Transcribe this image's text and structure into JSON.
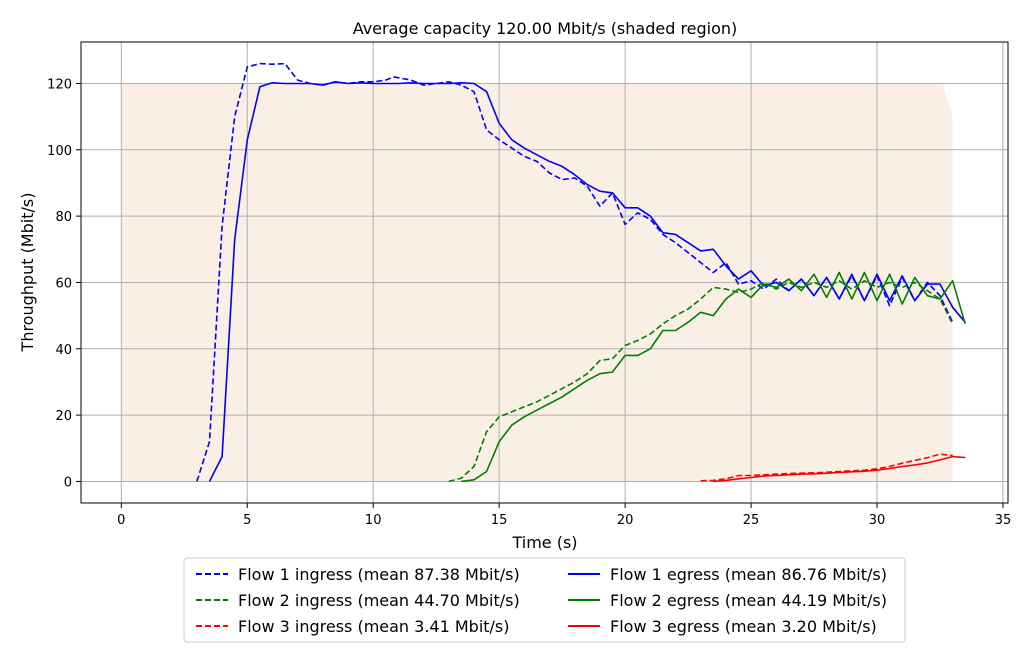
{
  "chart_data": {
    "type": "line",
    "title": "Average capacity 120.00 Mbit/s (shaded region)",
    "xlabel": "Time (s)",
    "ylabel": "Throughput (Mbit/s)",
    "xlim": [
      -1.6,
      35.2
    ],
    "ylim": [
      -6.5,
      132.5
    ],
    "xticks": [
      0,
      5,
      10,
      15,
      20,
      25,
      30,
      35
    ],
    "yticks": [
      0,
      20,
      40,
      60,
      80,
      100,
      120
    ],
    "grid": true,
    "legend_position": "below",
    "capacity": {
      "color": "#faefe5",
      "points": [
        [
          0,
          0
        ],
        [
          0,
          120
        ],
        [
          32.6,
          120
        ],
        [
          33,
          110
        ],
        [
          33,
          0
        ]
      ]
    },
    "series": [
      {
        "name": "Flow 1 ingress (mean 87.38 Mbit/s)",
        "color": "#0000ff",
        "dash": "dashed",
        "points": [
          [
            3,
            0
          ],
          [
            3.5,
            12
          ],
          [
            4,
            77
          ],
          [
            4.5,
            110
          ],
          [
            5,
            125
          ],
          [
            5.5,
            126
          ],
          [
            6,
            125.8
          ],
          [
            6.5,
            126
          ],
          [
            7,
            121
          ],
          [
            7.5,
            120
          ],
          [
            8,
            119.5
          ],
          [
            8.5,
            120.5
          ],
          [
            9,
            120
          ],
          [
            9.5,
            120.5
          ],
          [
            10,
            120.5
          ],
          [
            10.5,
            121
          ],
          [
            10.8,
            122
          ],
          [
            11.5,
            121
          ],
          [
            12,
            119.5
          ],
          [
            12.5,
            120
          ],
          [
            13,
            120.5
          ],
          [
            13.5,
            119.5
          ],
          [
            14,
            117.5
          ],
          [
            14.5,
            106
          ],
          [
            15,
            103
          ],
          [
            15.5,
            100.5
          ],
          [
            16,
            98
          ],
          [
            16.5,
            96.5
          ],
          [
            17,
            93
          ],
          [
            17.5,
            91
          ],
          [
            18,
            91.5
          ],
          [
            18.5,
            89
          ],
          [
            19,
            83
          ],
          [
            19.5,
            87
          ],
          [
            20,
            77.5
          ],
          [
            20.5,
            81
          ],
          [
            21,
            79
          ],
          [
            21.5,
            74.5
          ],
          [
            22,
            72
          ],
          [
            22.5,
            69
          ],
          [
            23,
            66
          ],
          [
            23.5,
            63
          ],
          [
            24,
            66
          ],
          [
            24.5,
            59.5
          ],
          [
            25,
            60.5
          ],
          [
            25.5,
            58
          ],
          [
            26,
            61
          ],
          [
            26.5,
            57.5
          ],
          [
            27,
            61
          ],
          [
            27.5,
            56
          ],
          [
            28,
            61.5
          ],
          [
            28.5,
            55
          ],
          [
            29,
            62
          ],
          [
            29.5,
            54.5
          ],
          [
            30,
            62
          ],
          [
            30.5,
            53
          ],
          [
            31,
            61.5
          ],
          [
            31.5,
            54.5
          ],
          [
            32,
            60
          ],
          [
            32.5,
            56
          ],
          [
            33,
            48
          ]
        ]
      },
      {
        "name": "Flow 1 egress (mean 86.76 Mbit/s)",
        "color": "#0000ff",
        "dash": "solid",
        "points": [
          [
            3.5,
            0
          ],
          [
            4,
            7.5
          ],
          [
            4.5,
            73
          ],
          [
            5,
            103
          ],
          [
            5.5,
            119
          ],
          [
            6,
            120.2
          ],
          [
            6.5,
            120
          ],
          [
            7,
            120
          ],
          [
            7.5,
            120
          ],
          [
            8,
            119.5
          ],
          [
            8.5,
            120.5
          ],
          [
            9,
            120
          ],
          [
            9.5,
            120.2
          ],
          [
            10,
            120
          ],
          [
            10.5,
            120
          ],
          [
            11,
            120
          ],
          [
            11.5,
            120.2
          ],
          [
            12,
            120
          ],
          [
            12.5,
            120
          ],
          [
            13,
            120
          ],
          [
            13.5,
            120.2
          ],
          [
            14,
            120
          ],
          [
            14.5,
            117.5
          ],
          [
            15,
            108
          ],
          [
            15.5,
            103
          ],
          [
            16,
            100.5
          ],
          [
            16.5,
            98.5
          ],
          [
            17,
            96.5
          ],
          [
            17.5,
            95
          ],
          [
            18,
            92.5
          ],
          [
            18.5,
            89.5
          ],
          [
            19,
            87.5
          ],
          [
            19.5,
            87
          ],
          [
            20,
            82.5
          ],
          [
            20.5,
            82.5
          ],
          [
            21,
            80
          ],
          [
            21.5,
            75
          ],
          [
            22,
            74.5
          ],
          [
            22.5,
            72
          ],
          [
            23,
            69.5
          ],
          [
            23.5,
            70
          ],
          [
            24,
            65
          ],
          [
            24.5,
            61
          ],
          [
            25,
            63.5
          ],
          [
            25.5,
            59
          ],
          [
            26,
            60
          ],
          [
            26.5,
            57.5
          ],
          [
            27,
            61
          ],
          [
            27.5,
            56
          ],
          [
            28,
            61.5
          ],
          [
            28.5,
            55
          ],
          [
            29,
            62.5
          ],
          [
            29.5,
            54.5
          ],
          [
            30,
            62.5
          ],
          [
            30.5,
            54.5
          ],
          [
            31,
            62
          ],
          [
            31.5,
            54.5
          ],
          [
            32,
            59.5
          ],
          [
            32.5,
            59.5
          ],
          [
            33,
            52.5
          ],
          [
            33.5,
            48
          ]
        ]
      },
      {
        "name": "Flow 2 ingress (mean 44.70 Mbit/s)",
        "color": "#008000",
        "dash": "dashed",
        "points": [
          [
            13,
            0
          ],
          [
            13.5,
            1
          ],
          [
            14,
            4.5
          ],
          [
            14.5,
            15
          ],
          [
            15,
            19.5
          ],
          [
            15.5,
            21
          ],
          [
            16,
            22.5
          ],
          [
            16.5,
            24
          ],
          [
            17,
            26
          ],
          [
            17.5,
            28
          ],
          [
            18,
            30
          ],
          [
            18.5,
            32.5
          ],
          [
            19,
            36.5
          ],
          [
            19.5,
            37
          ],
          [
            20,
            41
          ],
          [
            20.5,
            42.5
          ],
          [
            21,
            44.5
          ],
          [
            21.5,
            47.5
          ],
          [
            22,
            50
          ],
          [
            22.5,
            52
          ],
          [
            23,
            55
          ],
          [
            23.5,
            58.5
          ],
          [
            24,
            58
          ],
          [
            24.5,
            57
          ],
          [
            25,
            58
          ],
          [
            25.5,
            60
          ],
          [
            26,
            58
          ],
          [
            26.5,
            60
          ],
          [
            27,
            58.5
          ],
          [
            27.5,
            60
          ],
          [
            28,
            58.5
          ],
          [
            28.5,
            60.5
          ],
          [
            29,
            58
          ],
          [
            29.5,
            60.5
          ],
          [
            30,
            58.5
          ],
          [
            30.5,
            60
          ],
          [
            31,
            58.5
          ],
          [
            31.5,
            60
          ],
          [
            32,
            57.5
          ],
          [
            32.5,
            55
          ],
          [
            33,
            47.5
          ]
        ]
      },
      {
        "name": "Flow 2 egress (mean 44.19 Mbit/s)",
        "color": "#008000",
        "dash": "solid",
        "points": [
          [
            13.5,
            0
          ],
          [
            14,
            0.5
          ],
          [
            14.5,
            3
          ],
          [
            15,
            12
          ],
          [
            15.5,
            17
          ],
          [
            16,
            19.5
          ],
          [
            16.5,
            21.5
          ],
          [
            17,
            23.5
          ],
          [
            17.5,
            25.5
          ],
          [
            18,
            28
          ],
          [
            18.5,
            30.5
          ],
          [
            19,
            32.5
          ],
          [
            19.5,
            33
          ],
          [
            20,
            38
          ],
          [
            20.5,
            38
          ],
          [
            21,
            40
          ],
          [
            21.5,
            45.5
          ],
          [
            22,
            45.5
          ],
          [
            22.5,
            48
          ],
          [
            23,
            51
          ],
          [
            23.5,
            50
          ],
          [
            24,
            55
          ],
          [
            24.5,
            58
          ],
          [
            25,
            55.5
          ],
          [
            25.5,
            59.5
          ],
          [
            26,
            58.5
          ],
          [
            26.5,
            61
          ],
          [
            27,
            57.5
          ],
          [
            27.5,
            62.5
          ],
          [
            28,
            55.5
          ],
          [
            28.5,
            63
          ],
          [
            29,
            55
          ],
          [
            29.5,
            63
          ],
          [
            30,
            54.5
          ],
          [
            30.5,
            62.5
          ],
          [
            31,
            53.5
          ],
          [
            31.5,
            61.5
          ],
          [
            32,
            56
          ],
          [
            32.5,
            55
          ],
          [
            33,
            60.5
          ],
          [
            33.5,
            47.5
          ]
        ]
      },
      {
        "name": "Flow 3 ingress (mean 3.41 Mbit/s)",
        "color": "#ff0000",
        "dash": "dashed",
        "points": [
          [
            23,
            0.2
          ],
          [
            23.5,
            0.3
          ],
          [
            24,
            0.8
          ],
          [
            24.5,
            1.8
          ],
          [
            25,
            1.8
          ],
          [
            25.5,
            2
          ],
          [
            26,
            2.2
          ],
          [
            26.5,
            2.4
          ],
          [
            27,
            2.5
          ],
          [
            27.5,
            2.6
          ],
          [
            28,
            2.8
          ],
          [
            28.5,
            3
          ],
          [
            29,
            3.2
          ],
          [
            29.5,
            3.4
          ],
          [
            30,
            3.8
          ],
          [
            30.5,
            4.5
          ],
          [
            31,
            5.5
          ],
          [
            31.5,
            6.3
          ],
          [
            32,
            7.2
          ],
          [
            32.5,
            8.2
          ],
          [
            33,
            7.8
          ]
        ]
      },
      {
        "name": "Flow 3 egress (mean 3.20 Mbit/s)",
        "color": "#ff0000",
        "dash": "solid",
        "points": [
          [
            23.5,
            0
          ],
          [
            24,
            0.3
          ],
          [
            24.5,
            0.8
          ],
          [
            25,
            1.2
          ],
          [
            25.5,
            1.6
          ],
          [
            26,
            1.8
          ],
          [
            26.5,
            2
          ],
          [
            27,
            2.2
          ],
          [
            27.5,
            2.3
          ],
          [
            28,
            2.5
          ],
          [
            28.5,
            2.7
          ],
          [
            29,
            2.9
          ],
          [
            29.5,
            3.1
          ],
          [
            30,
            3.4
          ],
          [
            30.5,
            3.9
          ],
          [
            31,
            4.5
          ],
          [
            31.5,
            5
          ],
          [
            32,
            5.6
          ],
          [
            32.5,
            6.5
          ],
          [
            33,
            7.5
          ],
          [
            33.5,
            7.2
          ]
        ]
      }
    ]
  }
}
